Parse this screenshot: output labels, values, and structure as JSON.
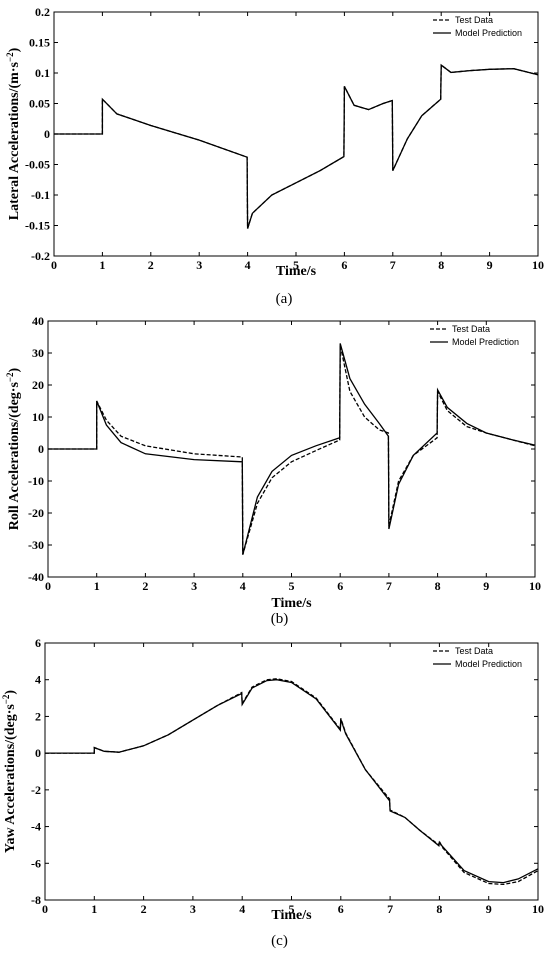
{
  "legend": {
    "test": "Test Data",
    "model": "Model Prediction"
  },
  "chart_data": [
    {
      "type": "line",
      "panel_label": "(a)",
      "xlabel": "Time/s",
      "ylabel": "Lateral Accelerations/(m·s",
      "ylabel_sup": "−2",
      "ylabel_close": ")",
      "xlim": [
        0,
        10
      ],
      "ylim": [
        -0.2,
        0.2
      ],
      "xticks": [
        "0",
        "1",
        "2",
        "3",
        "4",
        "5",
        "6",
        "7",
        "8",
        "9",
        "10"
      ],
      "yticks": [
        "-0.2",
        "-0.15",
        "-0.1",
        "-0.05",
        "0",
        "0.05",
        "0.1",
        "0.15",
        "0.2"
      ],
      "legend_position": "top-right",
      "series": [
        {
          "name": "Test Data",
          "style": "dashed",
          "x": [
            0,
            1,
            1,
            1.3,
            2,
            3,
            3.99,
            4,
            4.1,
            4.5,
            5,
            5.5,
            5.99,
            6,
            6.2,
            6.5,
            6.8,
            6.99,
            7,
            7.3,
            7.6,
            7.99,
            8,
            8.2,
            8.6,
            9,
            9.5,
            10
          ],
          "y": [
            0,
            0,
            0.057,
            0.033,
            0.014,
            -0.01,
            -0.038,
            -0.155,
            -0.13,
            -0.1,
            -0.08,
            -0.06,
            -0.037,
            0.078,
            0.047,
            0.04,
            0.05,
            0.055,
            -0.06,
            -0.008,
            0.03,
            0.057,
            0.113,
            0.101,
            0.104,
            0.106,
            0.107,
            0.097
          ]
        },
        {
          "name": "Model Prediction",
          "style": "solid",
          "x": [
            0,
            1,
            1,
            1.3,
            2,
            3,
            3.99,
            4,
            4.1,
            4.5,
            5,
            5.5,
            5.99,
            6,
            6.2,
            6.5,
            6.8,
            6.99,
            7,
            7.3,
            7.6,
            7.99,
            8,
            8.2,
            8.6,
            9,
            9.5,
            10
          ],
          "y": [
            0,
            0,
            0.057,
            0.033,
            0.014,
            -0.01,
            -0.038,
            -0.155,
            -0.13,
            -0.1,
            -0.08,
            -0.06,
            -0.037,
            0.078,
            0.047,
            0.04,
            0.05,
            0.055,
            -0.06,
            -0.008,
            0.03,
            0.057,
            0.113,
            0.101,
            0.104,
            0.106,
            0.107,
            0.097
          ]
        }
      ]
    },
    {
      "type": "line",
      "panel_label": "(b)",
      "xlabel": "Time/s",
      "ylabel": "Roll Accelerations/(deg·s",
      "ylabel_sup": "−2",
      "ylabel_close": ")",
      "xlim": [
        0,
        10
      ],
      "ylim": [
        -40,
        40
      ],
      "xticks": [
        "0",
        "1",
        "2",
        "3",
        "4",
        "5",
        "6",
        "7",
        "8",
        "9",
        "10"
      ],
      "yticks": [
        "-40",
        "-30",
        "-20",
        "-10",
        "0",
        "10",
        "20",
        "30",
        "40"
      ],
      "legend_position": "top-right",
      "series": [
        {
          "name": "Test Data",
          "style": "dashed",
          "x": [
            0,
            1,
            1,
            1.2,
            1.5,
            2,
            3,
            3.99,
            4,
            4.3,
            4.6,
            5,
            5.5,
            5.99,
            6,
            6.2,
            6.5,
            6.8,
            6.99,
            7,
            7.2,
            7.5,
            7.99,
            8,
            8.2,
            8.6,
            9,
            9.5,
            10
          ],
          "y": [
            0,
            0,
            15,
            9,
            4,
            1,
            -1.5,
            -2.5,
            -33,
            -17,
            -9,
            -4,
            -0.5,
            2.8,
            32.5,
            18,
            10,
            6,
            5,
            -24,
            -10,
            -2,
            3.5,
            18,
            12,
            7,
            5,
            3,
            1
          ]
        },
        {
          "name": "Model Prediction",
          "style": "solid",
          "x": [
            0,
            1,
            1,
            1.2,
            1.5,
            2,
            3,
            3.99,
            4,
            4.3,
            4.6,
            5,
            5.5,
            5.99,
            6,
            6.2,
            6.5,
            6.8,
            6.99,
            7,
            7.2,
            7.5,
            7.99,
            8,
            8.2,
            8.6,
            9,
            9.5,
            10
          ],
          "y": [
            0,
            0,
            15,
            7.5,
            2,
            -1.5,
            -3.3,
            -4,
            -33,
            -15,
            -7,
            -2,
            1,
            3.5,
            33,
            22,
            14,
            8,
            4,
            -25,
            -11,
            -2,
            5,
            18.5,
            13,
            8,
            5,
            3,
            1.2
          ]
        }
      ]
    },
    {
      "type": "line",
      "panel_label": "(c)",
      "xlabel": "Time/s",
      "ylabel": "Yaw Accelerations/(deg·s",
      "ylabel_sup": "−2",
      "ylabel_close": ")",
      "xlim": [
        0,
        10
      ],
      "ylim": [
        -8,
        6
      ],
      "xticks": [
        "0",
        "1",
        "2",
        "3",
        "4",
        "5",
        "6",
        "7",
        "8",
        "9",
        "10"
      ],
      "yticks": [
        "-8",
        "-6",
        "-4",
        "-2",
        "0",
        "2",
        "4",
        "6"
      ],
      "legend_position": "top-right",
      "series": [
        {
          "name": "Test Data",
          "style": "dashed",
          "x": [
            0,
            1,
            1,
            1.2,
            1.5,
            2,
            2.5,
            3,
            3.5,
            3.99,
            4,
            4.2,
            4.5,
            4.7,
            5,
            5.5,
            5.99,
            6,
            6.1,
            6.5,
            6.99,
            7,
            7.3,
            7.6,
            7.99,
            8,
            8.05,
            8.5,
            9,
            9.3,
            9.6,
            10
          ],
          "y": [
            0,
            0,
            0.3,
            0.1,
            0.05,
            0.4,
            1,
            1.8,
            2.6,
            3.3,
            2.7,
            3.6,
            4,
            4.05,
            3.9,
            3,
            1.3,
            1.9,
            1.1,
            -0.9,
            -2.5,
            -3.1,
            -3.5,
            -4.2,
            -5,
            -4.8,
            -5.1,
            -6.5,
            -7.1,
            -7.15,
            -7,
            -6.4
          ]
        },
        {
          "name": "Model Prediction",
          "style": "solid",
          "x": [
            0,
            1,
            1,
            1.2,
            1.5,
            2,
            2.5,
            3,
            3.5,
            3.99,
            4,
            4.2,
            4.5,
            4.7,
            5,
            5.5,
            5.99,
            6,
            6.1,
            6.5,
            6.99,
            7,
            7.3,
            7.6,
            7.99,
            8,
            8.05,
            8.5,
            9,
            9.3,
            9.6,
            10
          ],
          "y": [
            0,
            0,
            0.3,
            0.1,
            0.05,
            0.4,
            1,
            1.8,
            2.6,
            3.25,
            2.65,
            3.55,
            3.95,
            4,
            3.85,
            2.95,
            1.25,
            1.85,
            1.05,
            -0.9,
            -2.6,
            -3.15,
            -3.5,
            -4.2,
            -5.05,
            -4.85,
            -5.05,
            -6.4,
            -7,
            -7.05,
            -6.85,
            -6.3
          ]
        }
      ]
    }
  ]
}
